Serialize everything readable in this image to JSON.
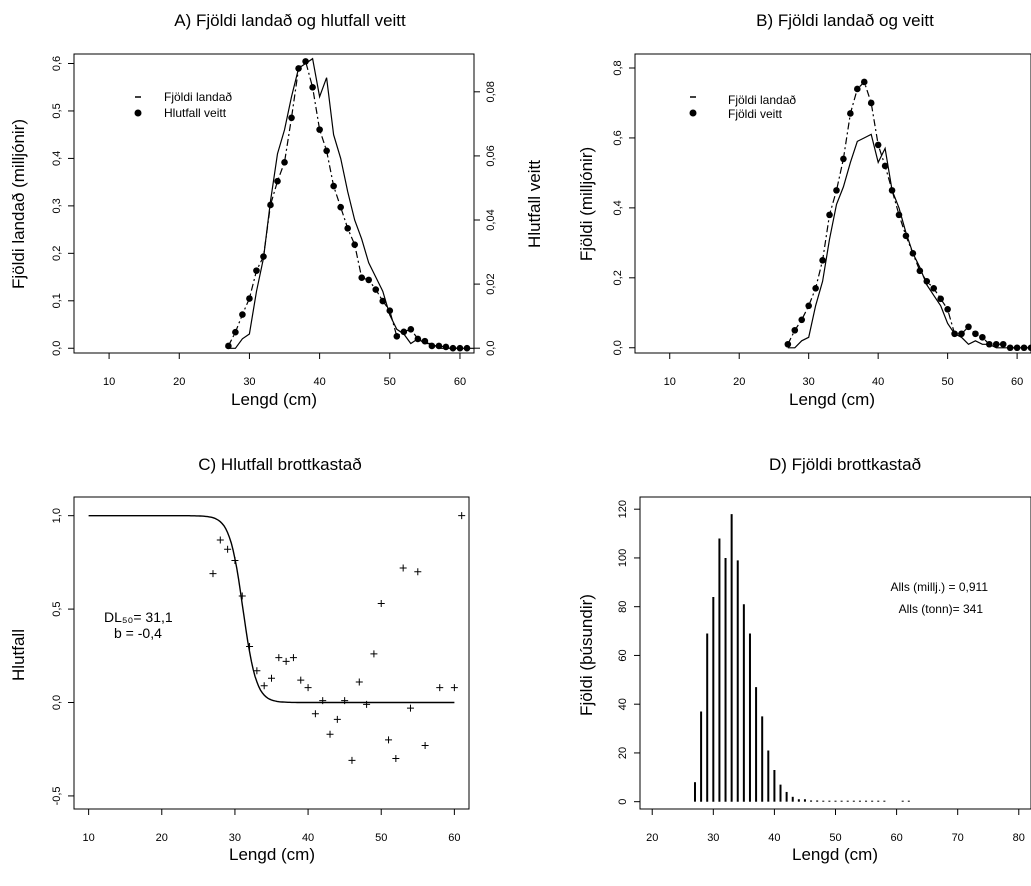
{
  "chart_data": [
    {
      "id": "A",
      "type": "line",
      "title": "A) Fjöldi landað og hlutfall veitt",
      "xlabel": "Lengd (cm)",
      "ylabel": "Fjöldi landað (milljónir)",
      "ylabel_right": "Hlutfall veitt",
      "xlim": [
        5,
        62
      ],
      "ylim": [
        -0.01,
        0.62
      ],
      "ylim_right": [
        -0.0015,
        0.0918
      ],
      "xticks": [
        "10",
        "20",
        "30",
        "40",
        "50",
        "60"
      ],
      "yticks": [
        "0,0",
        "0,1",
        "0,2",
        "0,3",
        "0,4",
        "0,5",
        "0,6"
      ],
      "yticks_right": [
        "0,0",
        "0,02",
        "0,04",
        "0,06",
        "0,08"
      ],
      "legend": {
        "position": "top-left",
        "entries": [
          "Fjöldi landað",
          "Hlutfall veitt"
        ]
      },
      "series": [
        {
          "name": "Fjöldi landað",
          "style": "solid",
          "x": [
            27,
            28,
            29,
            30,
            31,
            32,
            33,
            34,
            35,
            36,
            37,
            38,
            39,
            40,
            41,
            42,
            43,
            44,
            45,
            46,
            47,
            48,
            49,
            50,
            51,
            52,
            53,
            54,
            55,
            56,
            57,
            58,
            59,
            60,
            61,
            62
          ],
          "y": [
            0.0,
            0.0,
            0.02,
            0.03,
            0.12,
            0.19,
            0.31,
            0.41,
            0.46,
            0.53,
            0.59,
            0.6,
            0.61,
            0.53,
            0.57,
            0.45,
            0.4,
            0.33,
            0.27,
            0.23,
            0.18,
            0.15,
            0.12,
            0.07,
            0.04,
            0.03,
            0.01,
            0.02,
            0.01,
            0.01,
            0.0,
            0.0,
            0.0,
            0.0,
            0.0,
            0.0
          ]
        },
        {
          "name": "Hlutfall veitt",
          "style": "dashed-points",
          "axis": "right",
          "x": [
            27,
            28,
            29,
            30,
            31,
            32,
            33,
            34,
            35,
            36,
            37,
            38,
            39,
            40,
            41,
            42,
            43,
            44,
            45,
            46,
            47,
            48,
            49,
            50,
            51,
            52,
            53,
            54,
            55,
            56,
            57,
            58,
            59,
            60,
            61
          ],
          "y": [
            0.0007,
            0.005,
            0.0105,
            0.0155,
            0.0242,
            0.0286,
            0.0447,
            0.0521,
            0.058,
            0.0719,
            0.0873,
            0.0895,
            0.0814,
            0.0682,
            0.0616,
            0.0506,
            0.044,
            0.0374,
            0.0323,
            0.022,
            0.0213,
            0.0183,
            0.0147,
            0.0117,
            0.0037,
            0.0051,
            0.0059,
            0.0029,
            0.0022,
            0.0007,
            0.0007,
            0.0004,
            0.0,
            0.0,
            0.0
          ]
        }
      ]
    },
    {
      "id": "B",
      "type": "line",
      "title": "B) Fjöldi landað og veitt",
      "xlabel": "Lengd (cm)",
      "ylabel": "Fjöldi (milljónir)",
      "xlim": [
        5,
        62
      ],
      "ylim": [
        -0.015,
        0.84
      ],
      "xticks": [
        "10",
        "20",
        "30",
        "40",
        "50",
        "60"
      ],
      "yticks": [
        "0,0",
        "0,2",
        "0,4",
        "0,6",
        "0,8"
      ],
      "legend": {
        "position": "top-left",
        "entries": [
          "Fjöldi landað",
          "Fjöldi veitt"
        ]
      },
      "series": [
        {
          "name": "Fjöldi landað",
          "style": "solid",
          "x": [
            27,
            28,
            29,
            30,
            31,
            32,
            33,
            34,
            35,
            36,
            37,
            38,
            39,
            40,
            41,
            42,
            43,
            44,
            45,
            46,
            47,
            48,
            49,
            50,
            51,
            52,
            53,
            54,
            55,
            56,
            57,
            58,
            59,
            60,
            61,
            62
          ],
          "y": [
            0.0,
            0.0,
            0.02,
            0.03,
            0.12,
            0.19,
            0.31,
            0.41,
            0.46,
            0.53,
            0.59,
            0.6,
            0.61,
            0.53,
            0.57,
            0.45,
            0.4,
            0.33,
            0.27,
            0.23,
            0.18,
            0.15,
            0.12,
            0.07,
            0.04,
            0.03,
            0.01,
            0.02,
            0.01,
            0.01,
            0.0,
            0.0,
            0.0,
            0.0,
            0.0,
            0.0
          ]
        },
        {
          "name": "Fjöldi veitt",
          "style": "dashed-points",
          "x": [
            27,
            28,
            29,
            30,
            31,
            32,
            33,
            34,
            35,
            36,
            37,
            38,
            39,
            40,
            41,
            42,
            43,
            44,
            45,
            46,
            47,
            48,
            49,
            50,
            51,
            52,
            53,
            54,
            55,
            56,
            57,
            58,
            59,
            60,
            61,
            62
          ],
          "y": [
            0.01,
            0.05,
            0.08,
            0.12,
            0.17,
            0.25,
            0.38,
            0.45,
            0.54,
            0.67,
            0.74,
            0.76,
            0.7,
            0.58,
            0.52,
            0.45,
            0.38,
            0.32,
            0.27,
            0.22,
            0.19,
            0.17,
            0.14,
            0.11,
            0.04,
            0.04,
            0.06,
            0.04,
            0.03,
            0.01,
            0.01,
            0.01,
            0.0,
            0.0,
            0.0,
            0.0
          ]
        }
      ]
    },
    {
      "id": "C",
      "type": "scatter",
      "title": "C) Hlutfall brottkastað",
      "xlabel": "Lengd (cm)",
      "ylabel": "Hlutfall",
      "xlim": [
        8,
        62
      ],
      "ylim": [
        -0.57,
        1.1
      ],
      "xticks": [
        "10",
        "20",
        "30",
        "40",
        "50",
        "60"
      ],
      "yticks": [
        "-0,5",
        "0,0",
        "0,5",
        "1,0"
      ],
      "annotations": [
        "DL₅₀= 31,1",
        "b =  -0,4"
      ],
      "curve": {
        "DL50": 31.1,
        "b": -0.4,
        "x_range": [
          10,
          60
        ]
      },
      "points": {
        "x": [
          27,
          28,
          29,
          30,
          31,
          32,
          33,
          34,
          35,
          36,
          37,
          38,
          39,
          40,
          41,
          42,
          43,
          44,
          45,
          46,
          47,
          48,
          49,
          50,
          51,
          52,
          53,
          54,
          55,
          56,
          58,
          60,
          61
        ],
        "y": [
          0.69,
          0.87,
          0.82,
          0.76,
          0.57,
          0.3,
          0.17,
          0.09,
          0.13,
          0.24,
          0.22,
          0.24,
          0.12,
          0.08,
          -0.06,
          0.01,
          -0.17,
          -0.09,
          0.01,
          -0.31,
          0.11,
          -0.01,
          0.26,
          0.53,
          -0.2,
          -0.3,
          0.72,
          -0.03,
          0.7,
          -0.23,
          0.08,
          0.08,
          1.0
        ]
      }
    },
    {
      "id": "D",
      "type": "bar",
      "title": "D) Fjöldi brottkastað",
      "xlabel": "Lengd (cm)",
      "ylabel": "Fjöldi (þúsundir)",
      "xlim": [
        18,
        82
      ],
      "ylim": [
        -3,
        125
      ],
      "xticks": [
        "20",
        "30",
        "40",
        "50",
        "60",
        "70",
        "80"
      ],
      "yticks": [
        "0",
        "20",
        "40",
        "60",
        "80",
        "100",
        "120"
      ],
      "annotations": [
        "Alls (millj.) = 0,911",
        "Alls (tonn)= 341"
      ],
      "x": [
        27,
        28,
        29,
        30,
        31,
        32,
        33,
        34,
        35,
        36,
        37,
        38,
        39,
        40,
        41,
        42,
        43,
        44,
        45,
        46,
        47,
        48,
        49,
        50,
        51,
        52,
        53,
        54,
        55,
        56,
        57,
        58,
        61,
        62
      ],
      "values": [
        8,
        37,
        69,
        84,
        108,
        100,
        118,
        99,
        81,
        69,
        47,
        35,
        21,
        13,
        7,
        4,
        2,
        1,
        1,
        0.5,
        0.5,
        0.4,
        0.4,
        0.4,
        0.3,
        0.3,
        0.3,
        0.3,
        0.3,
        0.3,
        0.2,
        0.2,
        0.2,
        0.2
      ]
    }
  ]
}
